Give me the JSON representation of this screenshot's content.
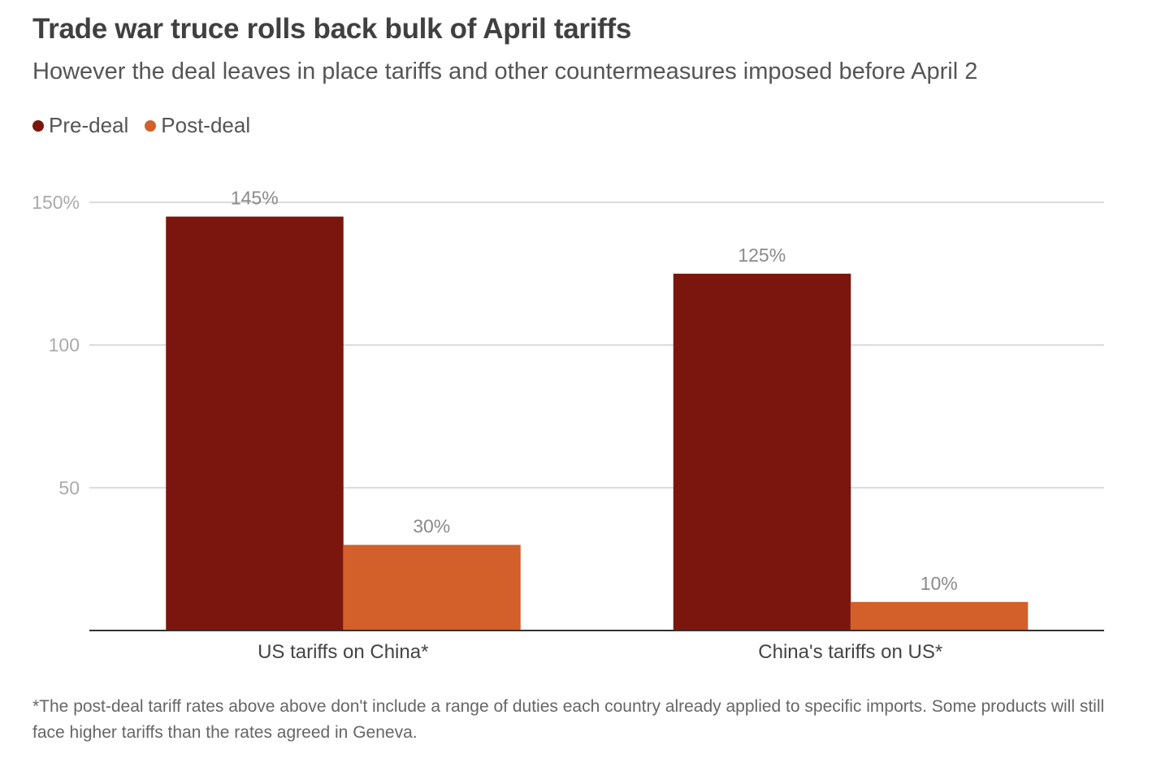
{
  "title": "Trade war truce rolls back bulk of April tariffs",
  "subtitle": "However the deal leaves in place tariffs and other countermeasures imposed before April 2",
  "legend": [
    {
      "label": "Pre-deal",
      "color": "#7b160e"
    },
    {
      "label": "Post-deal",
      "color": "#d35f2b"
    }
  ],
  "footnote": "*The post-deal tariff rates above above don't include a range of duties each country already applied to specific imports. Some products will still face higher tariffs than the rates agreed in Geneva.",
  "chart_data": {
    "type": "bar",
    "categories": [
      "US tariffs on China*",
      "China's tariffs on US*"
    ],
    "series": [
      {
        "name": "Pre-deal",
        "values": [
          145,
          125
        ],
        "labels": [
          "145%",
          "125%"
        ],
        "color": "#7b160e"
      },
      {
        "name": "Post-deal",
        "values": [
          30,
          10
        ],
        "labels": [
          "30%",
          "10%"
        ],
        "color": "#d35f2b"
      }
    ],
    "ylim": [
      0,
      150
    ],
    "yticks": [
      {
        "value": 50,
        "label": "50"
      },
      {
        "value": 100,
        "label": "100"
      },
      {
        "value": 150,
        "label": "150%"
      }
    ],
    "grid": true,
    "legend_position": "top-left"
  }
}
